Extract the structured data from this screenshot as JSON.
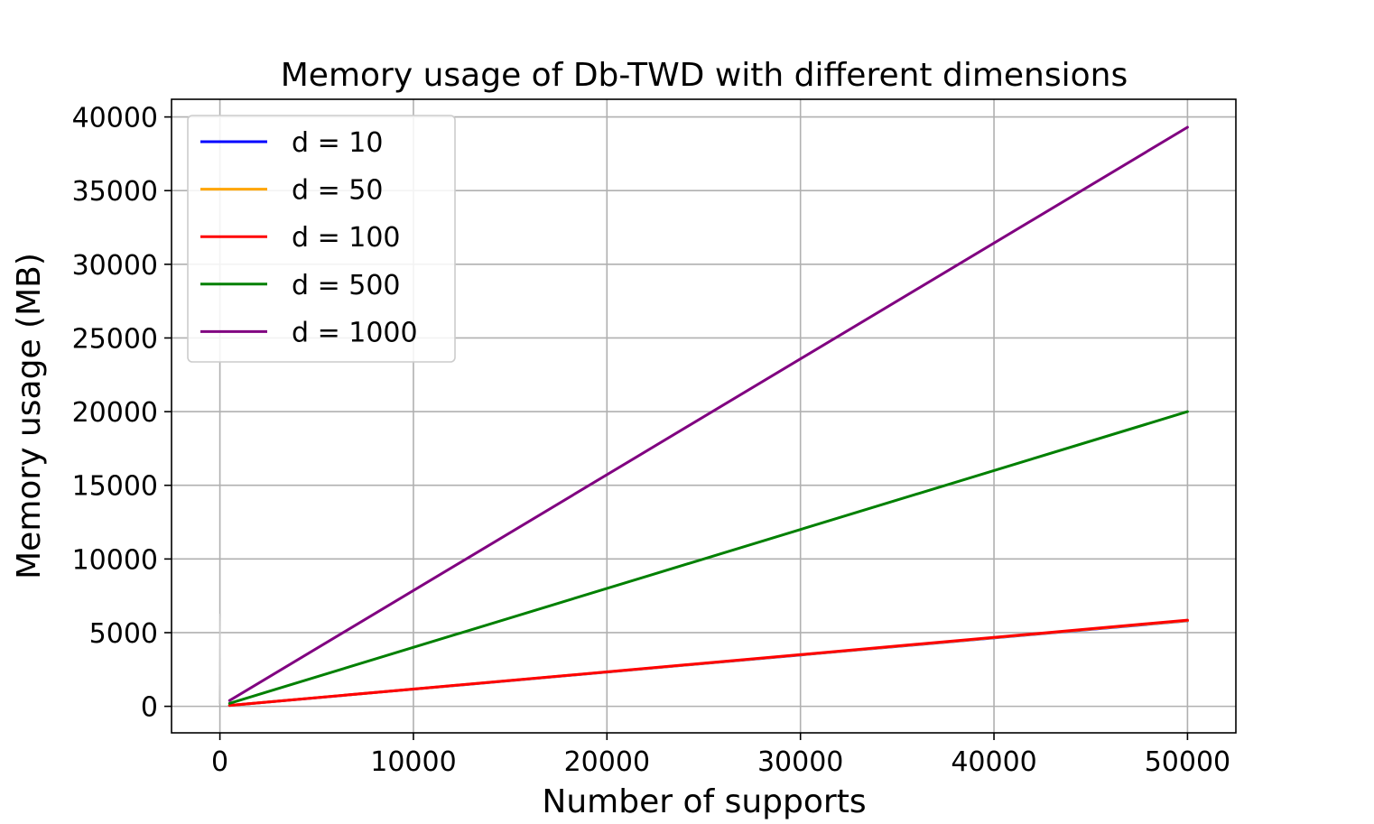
{
  "chart_data": {
    "type": "line",
    "title": "Memory usage of Db-TWD with different dimensions",
    "xlabel": "Number of supports",
    "ylabel": "Memory usage (MB)",
    "xlim": [
      -2500,
      52500
    ],
    "ylim": [
      -1800,
      41200
    ],
    "xticks": [
      0,
      10000,
      20000,
      30000,
      40000,
      50000
    ],
    "yticks": [
      0,
      5000,
      10000,
      15000,
      20000,
      25000,
      30000,
      35000,
      40000
    ],
    "grid": true,
    "legend_position": "upper-left",
    "series": [
      {
        "name": "d = 10",
        "color": "#0000ff",
        "x": [
          500,
          50000
        ],
        "y": [
          60,
          5800
        ]
      },
      {
        "name": "d = 50",
        "color": "#ffa500",
        "x": [
          500,
          50000
        ],
        "y": [
          60,
          5820
        ]
      },
      {
        "name": "d = 100",
        "color": "#ff0000",
        "x": [
          500,
          50000
        ],
        "y": [
          60,
          5850
        ]
      },
      {
        "name": "d = 500",
        "color": "#008000",
        "x": [
          500,
          50000
        ],
        "y": [
          200,
          20000
        ]
      },
      {
        "name": "d = 1000",
        "color": "#800080",
        "x": [
          500,
          50000
        ],
        "y": [
          390,
          39300
        ]
      }
    ]
  }
}
